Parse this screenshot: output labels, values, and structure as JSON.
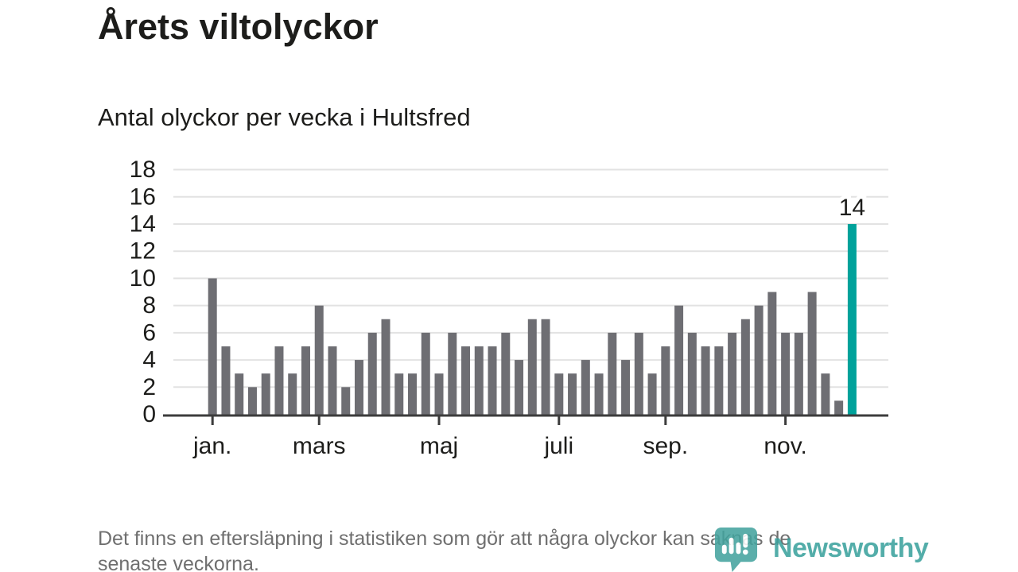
{
  "title": "Årets viltolyckor",
  "subtitle": "Antal olyckor per vecka i Hultsfred",
  "note_lines": [
    "Det finns en eftersläpning i statistiken som gör att några olyckor kan saknas de",
    "senaste veckorna."
  ],
  "logo": {
    "text": "Newsworthy",
    "color": "#3aa19d",
    "icon": "newsworthy-speech-bubble-bar-chart-icon"
  },
  "colors": {
    "bar": "#6e6e73",
    "highlight": "#00a29b",
    "grid": "#e2e2e2",
    "axis": "#3c3c3c",
    "text": "#1d1d1b",
    "note": "#6f6f6f"
  },
  "chart_data": {
    "type": "bar",
    "title": "Årets viltolyckor",
    "subtitle": "Antal olyckor per vecka i Hultsfred",
    "xlabel": "",
    "ylabel": "",
    "x_unit": "vecka",
    "categories": [
      1,
      2,
      3,
      4,
      5,
      6,
      7,
      8,
      9,
      10,
      11,
      12,
      13,
      14,
      15,
      16,
      17,
      18,
      19,
      20,
      21,
      22,
      23,
      24,
      25,
      26,
      27,
      28,
      29,
      30,
      31,
      32,
      33,
      34,
      35,
      36,
      37,
      38,
      39,
      40,
      41,
      42,
      43,
      44,
      45,
      46,
      47,
      48,
      49
    ],
    "values": [
      10,
      5,
      3,
      2,
      3,
      5,
      3,
      5,
      8,
      5,
      2,
      4,
      6,
      7,
      3,
      3,
      6,
      3,
      6,
      5,
      5,
      5,
      6,
      4,
      7,
      7,
      3,
      3,
      4,
      3,
      6,
      4,
      6,
      3,
      5,
      8,
      6,
      5,
      5,
      6,
      7,
      8,
      9,
      6,
      6,
      9,
      3,
      1,
      14
    ],
    "highlight": {
      "index": 48,
      "label": "14"
    },
    "ylim": [
      0,
      18
    ],
    "yticks": [
      0,
      2,
      4,
      6,
      8,
      10,
      12,
      14,
      16,
      18
    ],
    "xticks": [
      {
        "week": 1,
        "label": "jan."
      },
      {
        "week": 9,
        "label": "mars"
      },
      {
        "week": 18,
        "label": "maj"
      },
      {
        "week": 27,
        "label": "juli"
      },
      {
        "week": 35,
        "label": "sep."
      },
      {
        "week": 44,
        "label": "nov."
      }
    ],
    "grid": true,
    "legend": false
  }
}
